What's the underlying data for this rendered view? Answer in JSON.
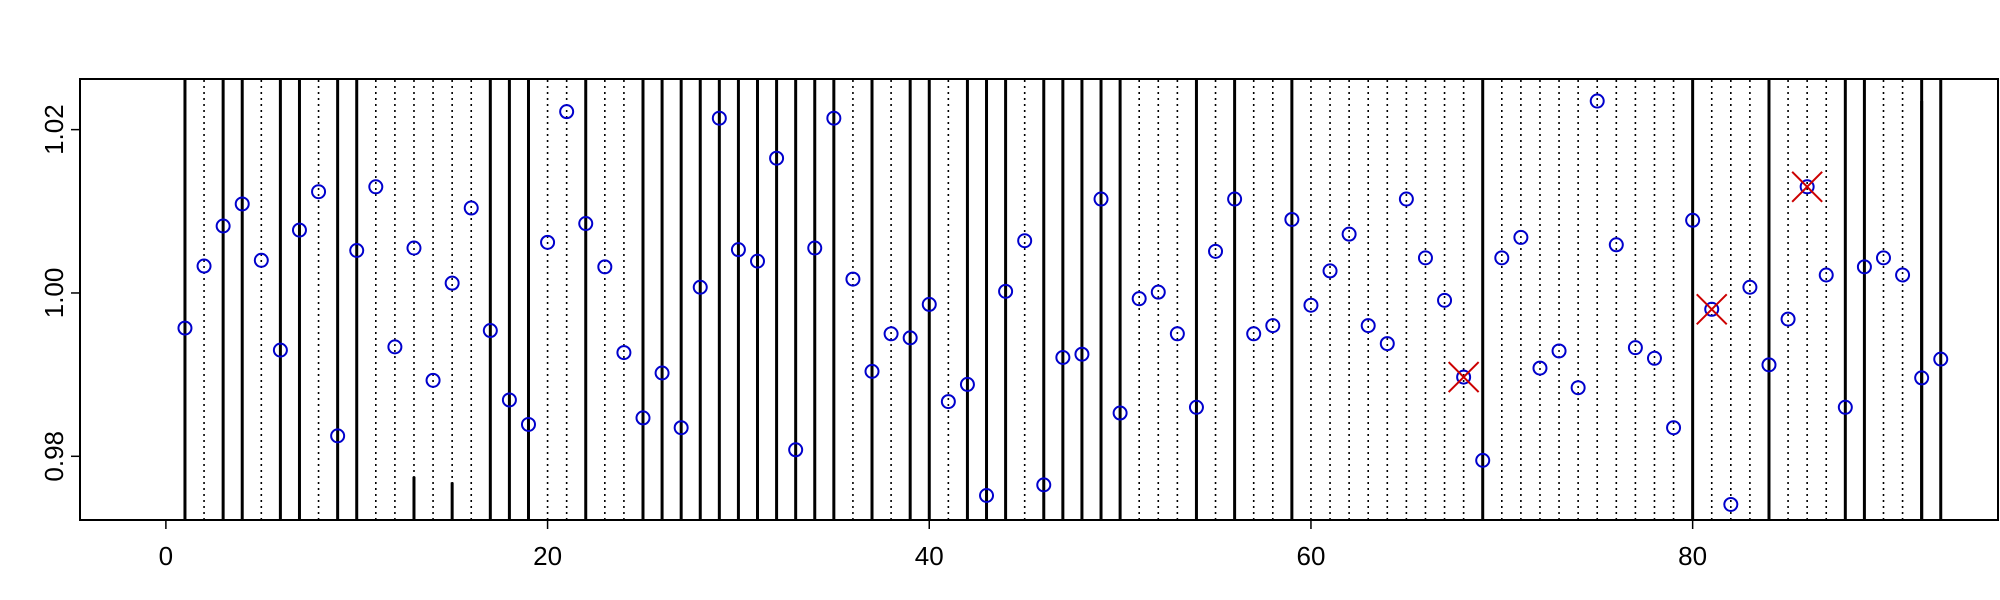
{
  "chart_data": {
    "type": "scatter",
    "title": "",
    "xlabel": "",
    "ylabel": "",
    "xlim": [
      -4.5,
      96
    ],
    "ylim": [
      0.9722,
      1.0262
    ],
    "x_ticks": [
      0,
      20,
      40,
      60,
      80
    ],
    "x_tick_labels": [
      "0",
      "20",
      "40",
      "60",
      "80"
    ],
    "y_ticks": [
      0.98,
      1.0,
      1.02
    ],
    "y_tick_labels": [
      "0.98",
      "1.00",
      "1.02"
    ],
    "grid": false,
    "legend": "none",
    "colors": {
      "points": "#0000CC",
      "flagged": "#CC0000",
      "solid_lines": "#000000",
      "dotted_lines": "#000000"
    },
    "points": {
      "x": [
        1,
        2,
        3,
        4,
        5,
        6,
        7,
        8,
        9,
        10,
        11,
        12,
        13,
        14,
        15,
        16,
        17,
        18,
        19,
        20,
        21,
        22,
        23,
        24,
        25,
        26,
        27,
        28,
        29,
        30,
        31,
        32,
        33,
        34,
        35,
        36,
        37,
        38,
        39,
        40,
        41,
        42,
        43,
        44,
        45,
        46,
        47,
        48,
        49,
        50,
        51,
        52,
        53,
        54,
        55,
        56,
        57,
        58,
        59,
        60,
        61,
        62,
        63,
        64,
        65,
        66,
        67,
        68,
        69,
        70,
        71,
        72,
        73,
        74,
        75,
        76,
        77,
        78,
        79,
        80,
        81,
        82,
        83,
        84,
        85,
        86,
        87,
        88,
        89,
        90,
        91,
        92,
        93
      ],
      "y": [
        0.9957,
        1.0033,
        1.0082,
        1.0109,
        1.004,
        0.993,
        1.0077,
        1.0124,
        0.9825,
        1.0052,
        1.013,
        0.9934,
        1.0055,
        0.9893,
        1.0012,
        1.0104,
        0.9954,
        0.9869,
        0.9839,
        1.0062,
        1.0222,
        1.0085,
        1.0032,
        0.9927,
        0.9847,
        0.9902,
        0.9835,
        1.0007,
        1.0214,
        1.0053,
        1.0039,
        1.0165,
        0.9808,
        1.0055,
        1.0214,
        1.0017,
        0.9904,
        0.995,
        0.9945,
        0.9986,
        0.9867,
        0.9888,
        0.9752,
        1.0002,
        1.0064,
        0.9765,
        0.9921,
        0.9925,
        1.0115,
        0.9853,
        0.9993,
        1.0001,
        0.995,
        0.986,
        1.0051,
        1.0115,
        0.995,
        0.996,
        1.009,
        0.9985,
        1.0027,
        1.0072,
        0.996,
        0.9938,
        1.0115,
        1.0043,
        0.9991,
        0.9897,
        0.9795,
        1.0043,
        1.0068,
        0.9908,
        0.9929,
        0.9884,
        1.0235,
        1.0059,
        0.9933,
        0.992,
        0.9835,
        1.0089,
        0.998,
        0.9741,
        1.0007,
        0.9912,
        0.9968,
        1.013,
        1.0022,
        0.986,
        1.0032,
        1.0043,
        1.0022,
        0.9896,
        0.9919
      ]
    },
    "flagged_x": [
      68,
      81,
      86
    ],
    "solid_lines": [
      1,
      3,
      4,
      6,
      7,
      9,
      10,
      17,
      18,
      19,
      22,
      25,
      26,
      27,
      28,
      29,
      30,
      31,
      32,
      33,
      34,
      35,
      37,
      39,
      40,
      42,
      43,
      44,
      46,
      47,
      48,
      49,
      50,
      54,
      56,
      59,
      69,
      80,
      84,
      88,
      89,
      92,
      93
    ],
    "dotted_lines": [
      2,
      5,
      8,
      11,
      12,
      13,
      14,
      15,
      16,
      20,
      21,
      23,
      24,
      36,
      38,
      41,
      45,
      51,
      52,
      53,
      55,
      57,
      58,
      60,
      61,
      62,
      63,
      64,
      65,
      66,
      67,
      68,
      70,
      71,
      72,
      73,
      74,
      75,
      76,
      77,
      78,
      79,
      81,
      82,
      83,
      85,
      86,
      87,
      90,
      91
    ],
    "short_solid_lines": [
      {
        "x": 13,
        "y_top": 0.9775
      },
      {
        "x": 15,
        "y_top": 0.9768
      },
      {
        "x": 92,
        "y_top": 1.0235
      }
    ]
  }
}
